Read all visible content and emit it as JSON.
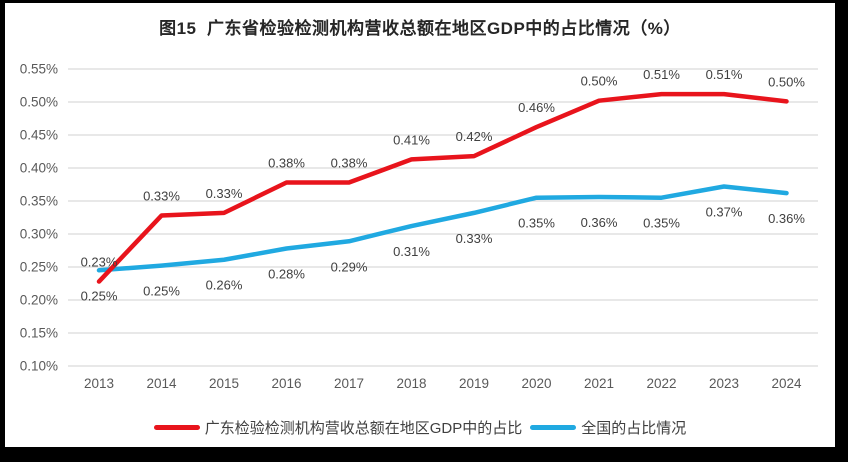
{
  "chart_data": {
    "type": "line",
    "title": "图15  广东省检验检测机构营收总额在地区GDP中的占比情况（%）",
    "categories": [
      "2013",
      "2014",
      "2015",
      "2016",
      "2017",
      "2018",
      "2019",
      "2020",
      "2021",
      "2022",
      "2023",
      "2024"
    ],
    "xlabel": "",
    "ylabel": "",
    "ylim": [
      0.1,
      0.55
    ],
    "y_tick_step": 0.05,
    "y_tick_labels": [
      "0.55%",
      "0.50%",
      "0.45%",
      "0.40%",
      "0.35%",
      "0.30%",
      "0.25%",
      "0.20%",
      "0.15%",
      "0.10%"
    ],
    "grid": true,
    "legend_position": "bottom",
    "colors": {
      "gridline": "#d9d9d9",
      "axis_text": "#595959",
      "data_label_text": "#404040",
      "title_text": "#262626"
    },
    "series": [
      {
        "name": "广东检验检测机构营收总额在地区GDP中的占比",
        "color": "#e8141c",
        "label_position": "above",
        "point_labels": [
          "0.23%",
          "0.33%",
          "0.33%",
          "0.38%",
          "0.38%",
          "0.41%",
          "0.42%",
          "0.46%",
          "0.50%",
          "0.51%",
          "0.51%",
          "0.50%"
        ],
        "values": [
          0.228,
          0.328,
          0.332,
          0.378,
          0.378,
          0.413,
          0.418,
          0.462,
          0.502,
          0.512,
          0.512,
          0.501
        ]
      },
      {
        "name": "全国的占比情况",
        "color": "#20a9e1",
        "label_position": "below",
        "point_labels": [
          "0.25%",
          "0.25%",
          "0.26%",
          "0.28%",
          "0.29%",
          "0.31%",
          "0.33%",
          "0.35%",
          "0.36%",
          "0.35%",
          "0.37%",
          "0.36%"
        ],
        "values": [
          0.245,
          0.252,
          0.261,
          0.278,
          0.289,
          0.312,
          0.332,
          0.355,
          0.356,
          0.355,
          0.372,
          0.362
        ]
      }
    ]
  }
}
